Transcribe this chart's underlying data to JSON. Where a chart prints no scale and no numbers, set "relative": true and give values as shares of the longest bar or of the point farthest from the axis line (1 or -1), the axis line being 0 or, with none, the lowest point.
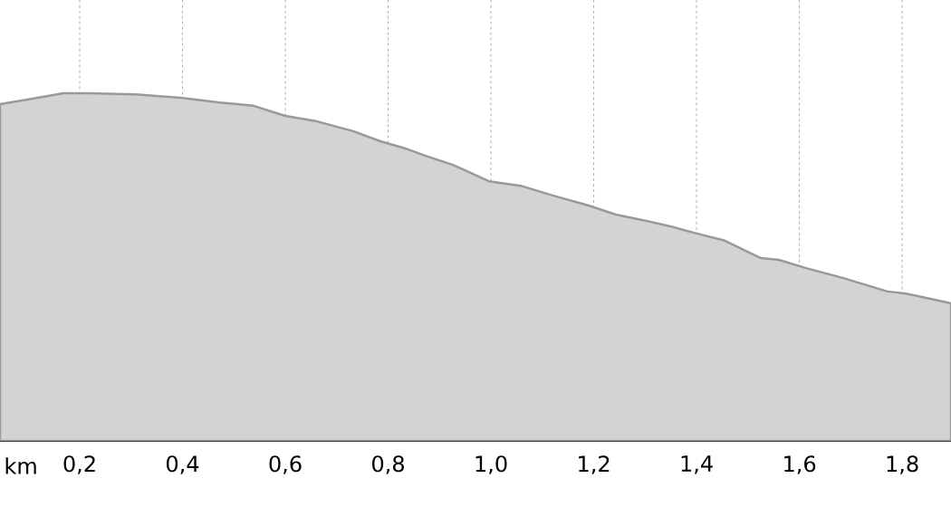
{
  "chart_data": {
    "type": "area",
    "relative": true,
    "xlabel": "km",
    "color": "#d3d3d3",
    "grid": true,
    "tick_labels": "x",
    "xlim": [
      0.045,
      1.895
    ],
    "xticks": [
      {
        "value": 0.2,
        "label": "0,2"
      },
      {
        "value": 0.4,
        "label": "0,4"
      },
      {
        "value": 0.6,
        "label": "0,6"
      },
      {
        "value": 0.8,
        "label": "0,8"
      },
      {
        "value": 1.0,
        "label": "1,0"
      },
      {
        "value": 1.2,
        "label": "1,2"
      },
      {
        "value": 1.4,
        "label": "1,4"
      },
      {
        "value": 1.6,
        "label": "1,6"
      },
      {
        "value": 1.8,
        "label": "1,8"
      }
    ],
    "x": [
      0.045,
      0.098,
      0.168,
      0.221,
      0.309,
      0.397,
      0.468,
      0.538,
      0.6,
      0.662,
      0.732,
      0.785,
      0.838,
      0.873,
      0.926,
      0.996,
      1.058,
      1.12,
      1.19,
      1.243,
      1.296,
      1.349,
      1.402,
      1.455,
      1.525,
      1.56,
      1.613,
      1.684,
      1.771,
      1.807,
      1.895
    ],
    "values": [
      0.969,
      0.982,
      1.0,
      1.0,
      0.997,
      0.987,
      0.974,
      0.964,
      0.935,
      0.919,
      0.891,
      0.862,
      0.839,
      0.82,
      0.794,
      0.747,
      0.734,
      0.706,
      0.677,
      0.651,
      0.635,
      0.617,
      0.596,
      0.576,
      0.526,
      0.521,
      0.497,
      0.469,
      0.43,
      0.424,
      0.396
    ]
  }
}
